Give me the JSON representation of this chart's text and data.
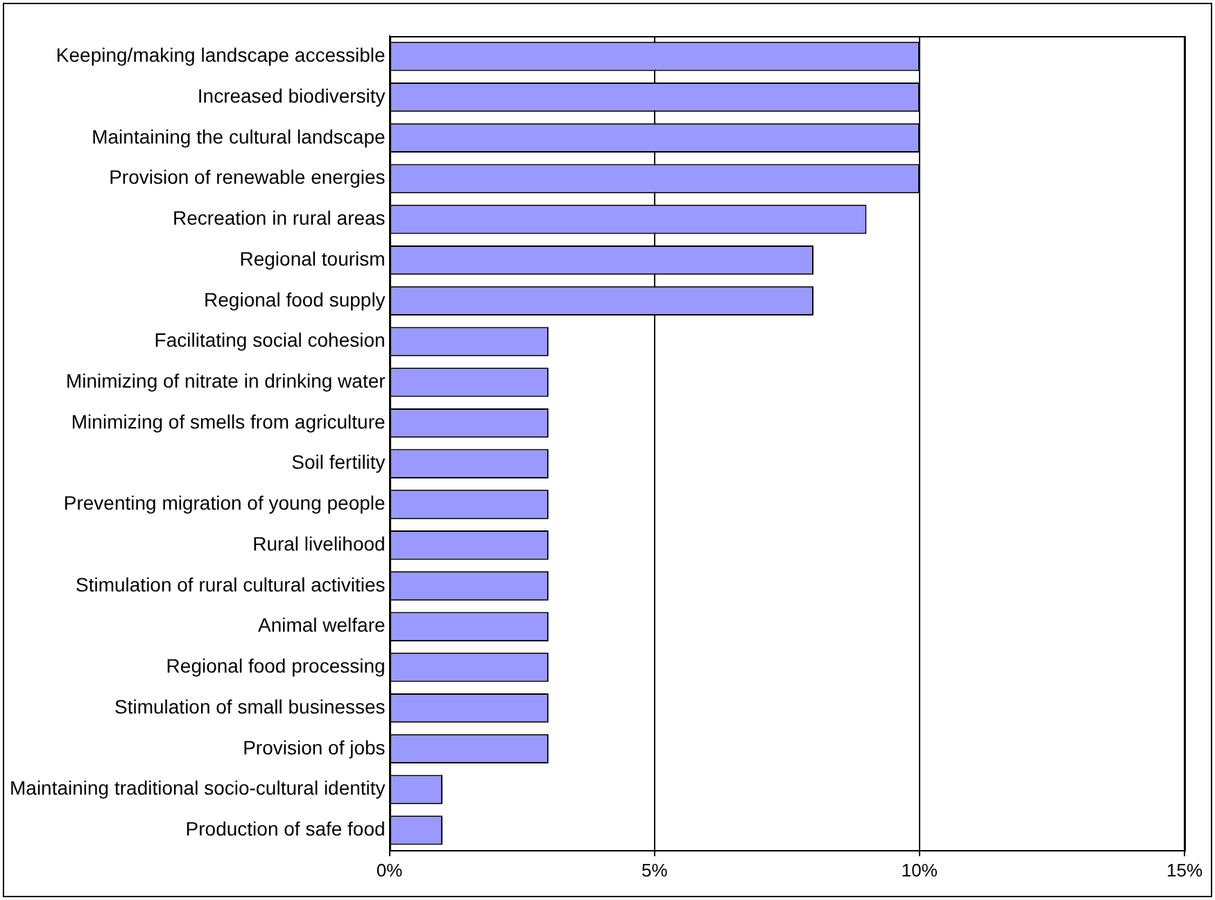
{
  "chart_data": {
    "type": "bar",
    "orientation": "horizontal",
    "categories": [
      "Keeping/making landscape accessible",
      "Increased biodiversity",
      "Maintaining the cultural landscape",
      "Provision of renewable energies",
      "Recreation in rural areas",
      "Regional tourism",
      "Regional food supply",
      "Facilitating social cohesion",
      "Minimizing of nitrate in drinking water",
      "Minimizing of smells from agriculture",
      "Soil fertility",
      "Preventing migration of young people",
      "Rural livelihood",
      "Stimulation of rural cultural activities",
      "Animal welfare",
      "Regional food processing",
      "Stimulation of small businesses",
      "Provision of jobs",
      "Maintaining traditional socio-cultural identity",
      "Production of safe food"
    ],
    "values": [
      10,
      10,
      10,
      10,
      9,
      8,
      8,
      3,
      3,
      3,
      3,
      3,
      3,
      3,
      3,
      3,
      3,
      3,
      1,
      1
    ],
    "color": "#9999ff",
    "xlim": [
      0,
      15
    ],
    "xticks": [
      {
        "value": 0,
        "label": "0%"
      },
      {
        "value": 5,
        "label": "5%"
      },
      {
        "value": 10,
        "label": "10%"
      },
      {
        "value": 15,
        "label": "15%"
      }
    ],
    "grid": "x",
    "legend": false
  }
}
